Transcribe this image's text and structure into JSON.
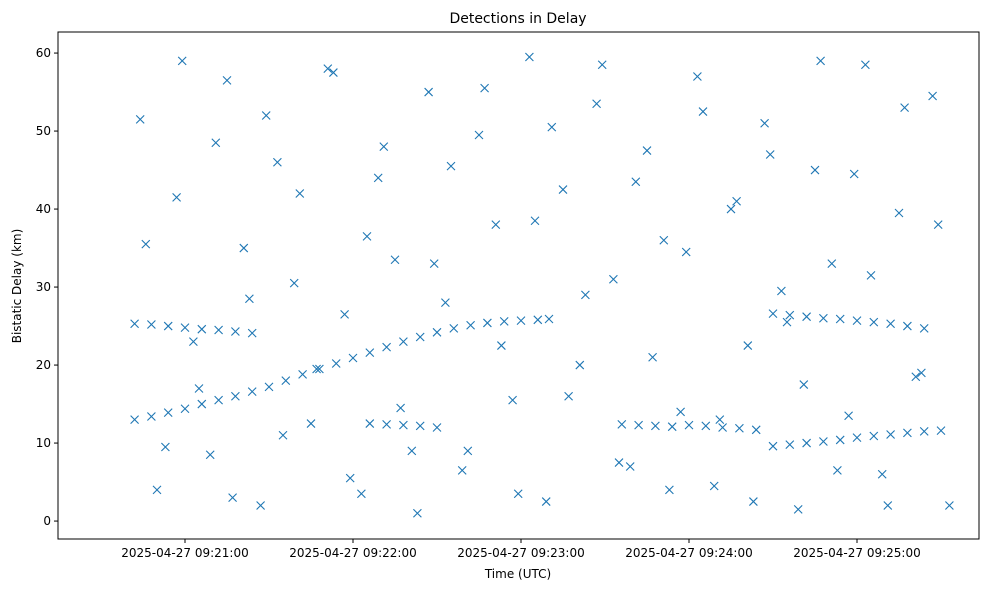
{
  "chart_data": {
    "type": "scatter",
    "title": "Detections in Delay",
    "xlabel": "Time (UTC)",
    "ylabel": "Bistatic Delay (km)",
    "x_tick_labels": [
      "2025-04-27 09:21:00",
      "2025-04-27 09:22:00",
      "2025-04-27 09:23:00",
      "2025-04-27 09:24:00",
      "2025-04-27 09:25:00"
    ],
    "y_tick_labels": [
      "0",
      "10",
      "20",
      "30",
      "40",
      "50",
      "60"
    ],
    "y_ticks": [
      0,
      10,
      20,
      30,
      40,
      50,
      60
    ],
    "ylim": [
      -2.3,
      62.7
    ],
    "marker": "x",
    "color": "#1f77b4",
    "grid": false,
    "legend": "none",
    "series": [
      {
        "x": [
          "09:20:42",
          "09:20:48",
          "09:20:54",
          "09:21:00",
          "09:21:06",
          "09:21:12",
          "09:21:18",
          "09:21:24",
          "09:21:30",
          "09:21:36",
          "09:21:42",
          "09:21:48",
          "09:21:54",
          "09:22:00",
          "09:22:06",
          "09:22:12",
          "09:22:18",
          "09:22:24",
          "09:22:30",
          "09:22:36",
          "09:22:42",
          "09:22:48",
          "09:22:54",
          "09:23:00",
          "09:23:06",
          "09:23:10"
        ],
        "y": [
          13.0,
          13.4,
          13.9,
          14.4,
          15.0,
          15.5,
          16.0,
          16.6,
          17.2,
          18.0,
          18.8,
          19.5,
          20.2,
          20.9,
          21.6,
          22.3,
          23.0,
          23.6,
          24.2,
          24.7,
          25.1,
          25.4,
          25.6,
          25.7,
          25.8,
          25.9
        ]
      },
      {
        "x": [
          "09:20:42",
          "09:20:48",
          "09:20:54",
          "09:21:00",
          "09:21:06",
          "09:21:12",
          "09:21:18",
          "09:21:24",
          "09:24:30",
          "09:24:36",
          "09:24:42",
          "09:24:48",
          "09:24:54",
          "09:25:00",
          "09:25:06",
          "09:25:12",
          "09:25:18",
          "09:25:24"
        ],
        "y": [
          25.3,
          25.2,
          25.0,
          24.8,
          24.6,
          24.5,
          24.3,
          24.1,
          26.6,
          26.4,
          26.2,
          26.0,
          25.9,
          25.7,
          25.5,
          25.3,
          25.0,
          24.7
        ]
      },
      {
        "x": [
          "09:22:06",
          "09:22:12",
          "09:22:18",
          "09:22:24",
          "09:22:30",
          "09:23:36",
          "09:23:42",
          "09:23:48",
          "09:23:54",
          "09:24:00",
          "09:24:06",
          "09:24:12",
          "09:24:18",
          "09:24:24",
          "09:24:30",
          "09:24:36",
          "09:24:42",
          "09:24:48",
          "09:24:54",
          "09:25:00",
          "09:25:06",
          "09:25:12",
          "09:25:18",
          "09:25:24",
          "09:25:30"
        ],
        "y": [
          12.5,
          12.4,
          12.3,
          12.2,
          12.0,
          12.4,
          12.3,
          12.2,
          12.1,
          12.3,
          12.2,
          12.0,
          11.9,
          11.7,
          9.6,
          9.8,
          10.0,
          10.2,
          10.4,
          10.7,
          10.9,
          11.1,
          11.3,
          11.5,
          11.6
        ]
      },
      {
        "x": [
          "09:20:44",
          "09:20:50",
          "09:20:57",
          "09:21:03",
          "09:21:09",
          "09:21:15",
          "09:21:21",
          "09:21:27",
          "09:21:33",
          "09:21:39",
          "09:21:45",
          "09:21:51",
          "09:21:57",
          "09:22:03",
          "09:22:09",
          "09:22:15",
          "09:22:21",
          "09:22:27",
          "09:22:33",
          "09:22:39",
          "09:22:45",
          "09:22:51",
          "09:22:57",
          "09:23:03",
          "09:23:09",
          "09:23:15",
          "09:23:21",
          "09:23:27",
          "09:23:33",
          "09:23:39",
          "09:23:45",
          "09:23:51",
          "09:23:57",
          "09:24:03",
          "09:24:09",
          "09:24:15",
          "09:24:21",
          "09:24:27",
          "09:24:33",
          "09:24:39",
          "09:24:45",
          "09:24:51",
          "09:24:57",
          "09:25:03",
          "09:25:09",
          "09:25:15",
          "09:25:21",
          "09:25:27",
          "09:25:33",
          "09:20:46",
          "09:20:53",
          "09:20:59",
          "09:21:05",
          "09:21:11",
          "09:21:17",
          "09:21:23",
          "09:21:29",
          "09:21:35",
          "09:21:41",
          "09:21:47",
          "09:21:53",
          "09:21:59",
          "09:22:05",
          "09:22:11",
          "09:22:17",
          "09:22:23",
          "09:22:29",
          "09:22:35",
          "09:22:41",
          "09:22:47",
          "09:22:53",
          "09:22:59",
          "09:23:05",
          "09:23:11",
          "09:23:17",
          "09:23:23",
          "09:23:29",
          "09:23:35",
          "09:23:41",
          "09:23:47",
          "09:23:53",
          "09:23:59",
          "09:24:05",
          "09:24:11",
          "09:24:17",
          "09:24:23",
          "09:24:29",
          "09:24:35",
          "09:24:41",
          "09:24:47",
          "09:24:53",
          "09:24:59",
          "09:25:05",
          "09:25:11",
          "09:25:17",
          "09:25:23",
          "09:25:29"
        ],
        "y": [
          51.5,
          4.0,
          41.5,
          23.0,
          8.5,
          56.5,
          35.0,
          2.0,
          46.0,
          30.5,
          12.5,
          58.0,
          26.5,
          3.5,
          44.0,
          33.5,
          9.0,
          55.0,
          28.0,
          6.5,
          49.5,
          38.0,
          15.5,
          59.5,
          2.5,
          42.5,
          20.0,
          53.5,
          31.0,
          7.0,
          47.5,
          36.0,
          14.0,
          57.0,
          4.5,
          40.0,
          22.5,
          51.0,
          29.5,
          1.5,
          45.0,
          33.0,
          13.5,
          58.5,
          6.0,
          39.5,
          18.5,
          54.5,
          2.0,
          35.5,
          9.5,
          59.0,
          17.0,
          48.5,
          3.0,
          28.5,
          52.0,
          11.0,
          42.0,
          19.5,
          57.5,
          5.5,
          36.5,
          48.0,
          14.5,
          1.0,
          33.0,
          45.5,
          9.0,
          55.5,
          22.5,
          3.5,
          38.5,
          50.5,
          16.0,
          29.0,
          58.5,
          7.5,
          43.5,
          21.0,
          4.0,
          34.5,
          52.5,
          13.0,
          41.0,
          2.5,
          47.0,
          25.5,
          17.5,
          59.0,
          6.5,
          44.5,
          31.5,
          2.0,
          53.0,
          19.0,
          38.0
        ]
      }
    ]
  }
}
